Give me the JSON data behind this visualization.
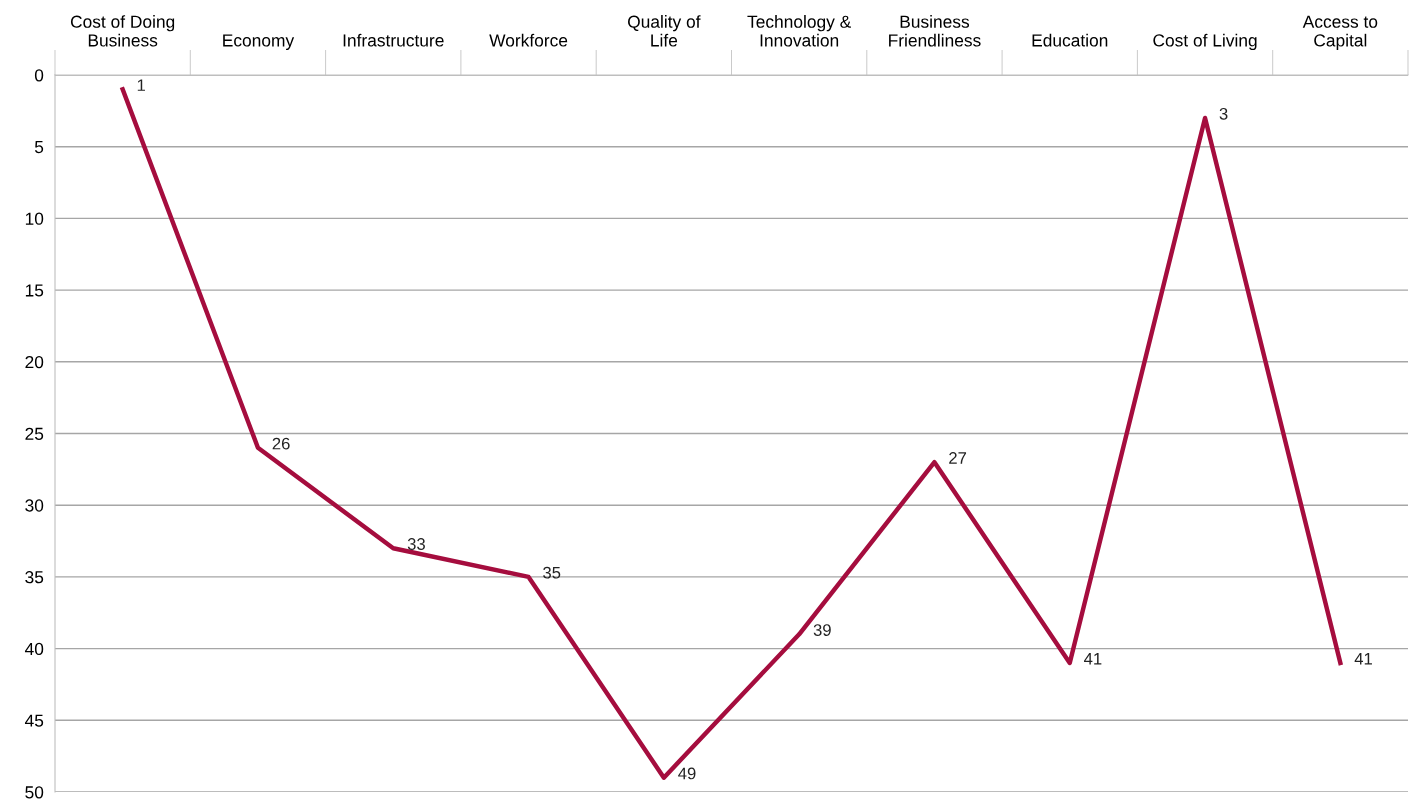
{
  "chart_data": {
    "type": "line",
    "categories": [
      "Cost of Doing\nBusiness",
      "Economy",
      "Infrastructure",
      "Workforce",
      "Quality of\nLife",
      "Technology &\nInnovation",
      "Business\nFriendliness",
      "Education",
      "Cost of Living",
      "Access to\nCapital"
    ],
    "series": [
      {
        "color": "#a50d3e",
        "values": [
          1,
          26,
          33,
          35,
          49,
          39,
          27,
          41,
          3,
          41
        ]
      }
    ],
    "ylim": [
      50,
      0
    ],
    "yticks": [
      0,
      5,
      10,
      15,
      20,
      25,
      30,
      35,
      40,
      45,
      50
    ],
    "grid": "y",
    "data_labels": true,
    "marker": "none",
    "line_style": "solid",
    "legend": false
  }
}
